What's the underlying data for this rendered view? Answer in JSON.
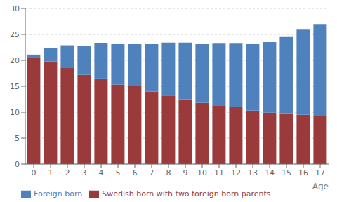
{
  "chart_data": {
    "type": "bar",
    "stacked": true,
    "categories": [
      "0",
      "1",
      "2",
      "3",
      "4",
      "5",
      "6",
      "7",
      "8",
      "9",
      "10",
      "11",
      "12",
      "13",
      "14",
      "15",
      "16",
      "17"
    ],
    "series": [
      {
        "name": "Swedish born with two foreign born parents",
        "color": "#9B3A3A",
        "values": [
          20.5,
          19.8,
          18.5,
          17.2,
          16.5,
          15.3,
          15.0,
          14.0,
          13.2,
          12.5,
          11.8,
          11.2,
          11.0,
          10.3,
          9.9,
          9.8,
          9.5,
          9.3
        ]
      },
      {
        "name": "Foreign born",
        "color": "#4F81BD",
        "values": [
          0.6,
          2.6,
          4.4,
          5.6,
          6.8,
          7.8,
          8.1,
          9.1,
          10.2,
          10.9,
          11.3,
          12.0,
          12.2,
          12.8,
          13.6,
          14.7,
          16.4,
          17.7
        ]
      }
    ],
    "xlabel": "Age",
    "ylim": [
      0,
      30
    ],
    "yticks": [
      0,
      5,
      10,
      15,
      20,
      25,
      30
    ],
    "grid": true,
    "legend": "bottom"
  }
}
